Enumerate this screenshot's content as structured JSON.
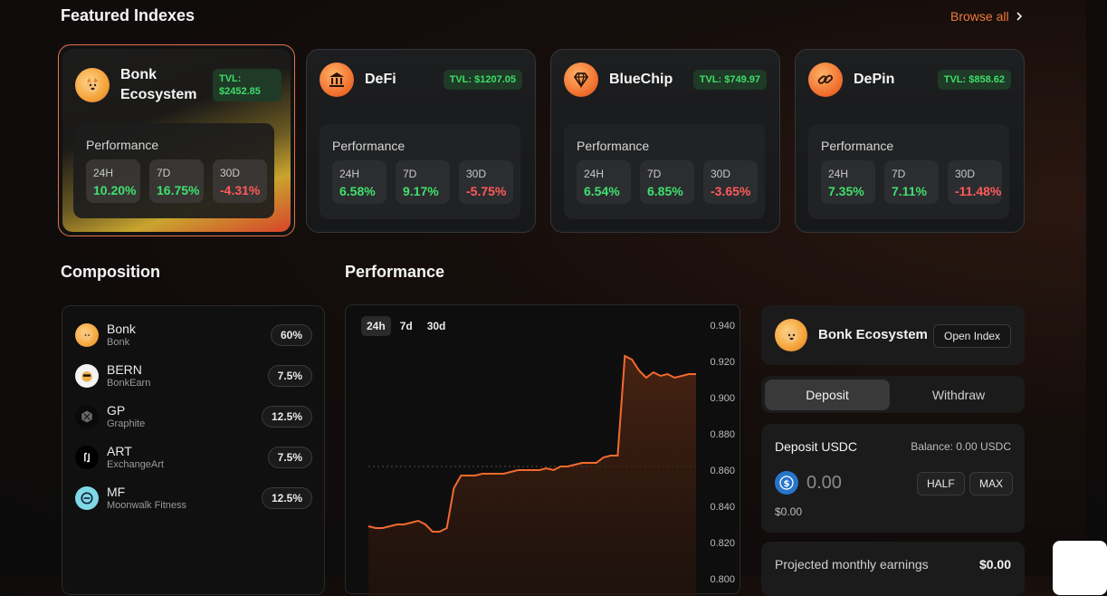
{
  "featured": {
    "title": "Featured Indexes",
    "browse_label": "Browse all",
    "cards": [
      {
        "name": "Bonk Ecosystem",
        "tvl": "TVL: $2452.85",
        "perf_label": "Performance",
        "stats": [
          {
            "k": "24H",
            "v": "10.20%"
          },
          {
            "k": "7D",
            "v": "16.75%"
          },
          {
            "k": "30D",
            "v": "-4.31%"
          }
        ]
      },
      {
        "name": "DeFi",
        "tvl": "TVL: $1207.05",
        "perf_label": "Performance",
        "stats": [
          {
            "k": "24H",
            "v": "6.58%"
          },
          {
            "k": "7D",
            "v": "9.17%"
          },
          {
            "k": "30D",
            "v": "-5.75%"
          }
        ]
      },
      {
        "name": "BlueChip",
        "tvl": "TVL: $749.97",
        "perf_label": "Performance",
        "stats": [
          {
            "k": "24H",
            "v": "6.54%"
          },
          {
            "k": "7D",
            "v": "6.85%"
          },
          {
            "k": "30D",
            "v": "-3.65%"
          }
        ]
      },
      {
        "name": "DePin",
        "tvl": "TVL: $858.62",
        "perf_label": "Performance",
        "stats": [
          {
            "k": "24H",
            "v": "7.35%"
          },
          {
            "k": "7D",
            "v": "7.11%"
          },
          {
            "k": "30D",
            "v": "-11.48%"
          }
        ]
      }
    ]
  },
  "composition": {
    "title": "Composition",
    "items": [
      {
        "symbol": "Bonk",
        "name": "Bonk",
        "pct": "60%"
      },
      {
        "symbol": "BERN",
        "name": "BonkEarn",
        "pct": "7.5%"
      },
      {
        "symbol": "GP",
        "name": "Graphite",
        "pct": "12.5%"
      },
      {
        "symbol": "ART",
        "name": "ExchangeArt",
        "pct": "7.5%"
      },
      {
        "symbol": "MF",
        "name": "Moonwalk Fitness",
        "pct": "12.5%"
      }
    ]
  },
  "performance": {
    "title": "Performance",
    "tabs": [
      "24h",
      "7d",
      "30d"
    ],
    "active_tab": "24h"
  },
  "chart_data": {
    "type": "area",
    "title": "Performance",
    "xlabel": "",
    "ylabel": "",
    "ylim": [
      0.8,
      0.94
    ],
    "yticks": [
      "0.940",
      "0.920",
      "0.900",
      "0.880",
      "0.860",
      "0.840",
      "0.820",
      "0.800"
    ],
    "reference_line": 0.862,
    "series": [
      {
        "name": "Bonk Ecosystem",
        "color": "#f26a2e",
        "x": [
          0,
          1,
          2,
          3,
          4,
          5,
          6,
          7,
          8,
          9,
          10,
          11,
          12,
          13,
          14,
          15,
          16,
          17,
          18,
          19,
          20,
          21,
          22,
          23,
          24,
          25,
          26,
          27,
          28,
          29,
          30,
          31,
          32,
          33,
          34,
          35,
          36,
          37,
          38,
          39,
          40,
          41,
          42,
          43,
          44,
          45,
          46
        ],
        "values": [
          0.829,
          0.828,
          0.828,
          0.829,
          0.83,
          0.83,
          0.831,
          0.832,
          0.83,
          0.826,
          0.826,
          0.828,
          0.85,
          0.857,
          0.857,
          0.857,
          0.858,
          0.858,
          0.858,
          0.858,
          0.859,
          0.86,
          0.86,
          0.86,
          0.86,
          0.861,
          0.86,
          0.862,
          0.862,
          0.863,
          0.864,
          0.864,
          0.864,
          0.867,
          0.868,
          0.868,
          0.923,
          0.921,
          0.915,
          0.911,
          0.914,
          0.912,
          0.913,
          0.911,
          0.912,
          0.913,
          0.913
        ]
      }
    ]
  },
  "side": {
    "index_name": "Bonk Ecosystem",
    "open_label": "Open Index",
    "deposit_tab": "Deposit",
    "withdraw_tab": "Withdraw",
    "deposit_title": "Deposit USDC",
    "balance": "Balance: 0.00 USDC",
    "amount": "0.00",
    "half_label": "HALF",
    "max_label": "MAX",
    "usd_value": "$0.00",
    "projected_label": "Projected monthly earnings",
    "projected_value": "$0.00"
  },
  "colors": {
    "accent": "#f07a3c",
    "positive": "#3fe06e",
    "negative": "#ff5a5a"
  }
}
